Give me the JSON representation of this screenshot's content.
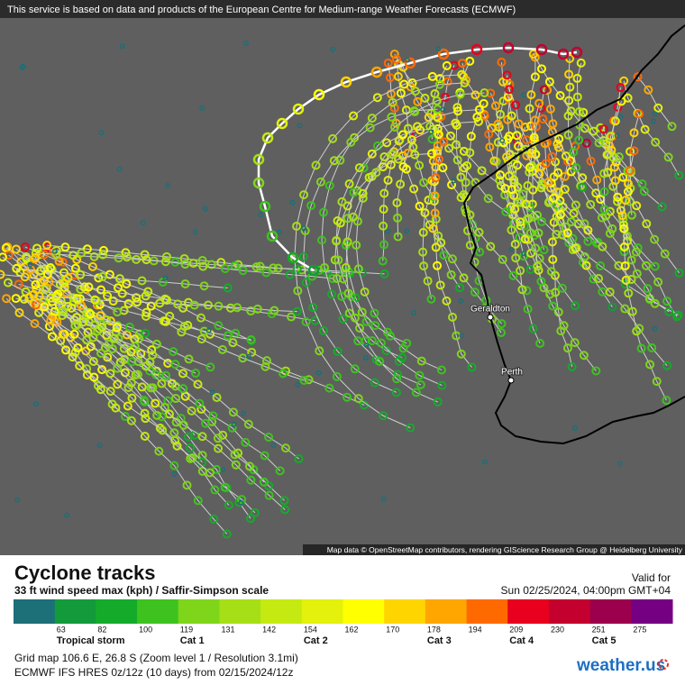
{
  "notice": "This service is based on data and products of the European Centre for Medium-range Weather Forecasts (ECMWF)",
  "places": [
    "Geraldton",
    "Perth"
  ],
  "attribution": "Map data © OpenStreetMap contributors, rendering GIScience Research Group @ Heidelberg University",
  "title": "Cyclone tracks",
  "subtitle": "33 ft wind speed max (kph) / Saffir-Simpson scale",
  "valid_label": "Valid for",
  "valid_time": "Sun 02/25/2024, 04:00pm GMT+04",
  "legend": {
    "colors": [
      "#1d6f78",
      "#139a3b",
      "#15ab2a",
      "#3ec21f",
      "#7fd51a",
      "#a6df16",
      "#c5ea12",
      "#e3f10b",
      "#ffff00",
      "#ffd500",
      "#ffa600",
      "#ff6a00",
      "#e8001e",
      "#c4002e",
      "#9c004c",
      "#760082"
    ],
    "ticks": [
      63,
      82,
      100,
      119,
      131,
      142,
      154,
      162,
      170,
      178,
      194,
      209,
      230,
      251,
      275
    ],
    "category_labels": [
      "Tropical storm",
      null,
      null,
      "Cat 1",
      null,
      null,
      "Cat 2",
      null,
      null,
      "Cat 3",
      null,
      "Cat 4",
      null,
      "Cat 5",
      null
    ]
  },
  "grid_info": "Grid map 106.6 E, 26.8 S (Zoom level 1 / Resolution 3.1mi)",
  "model_info": "ECMWF IFS HRES 0z/12z (10 days)  from  02/15/2024/12z",
  "logo": "weather.us"
}
